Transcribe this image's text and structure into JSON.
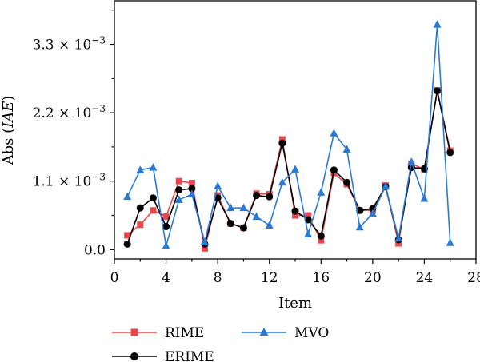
{
  "chart_data": {
    "type": "line",
    "xlabel": "Item",
    "ylabel": "Abs (IAE)",
    "ylabel_parts": {
      "prefix": "Abs (",
      "italic": "IAE",
      "suffix": ")"
    },
    "xlim": [
      0,
      28
    ],
    "ylim": [
      -0.00015,
      0.004
    ],
    "xticks": [
      0,
      4,
      8,
      12,
      16,
      20,
      24,
      28
    ],
    "yticks": [
      {
        "value": 0.0,
        "mantissa": "0.0",
        "exponent": ""
      },
      {
        "value": 0.0011,
        "mantissa": "1.1 × 10",
        "exponent": "−3"
      },
      {
        "value": 0.0022,
        "mantissa": "2.2 × 10",
        "exponent": "−3"
      },
      {
        "value": 0.0033,
        "mantissa": "3.3 × 10",
        "exponent": "−3"
      }
    ],
    "grid": false,
    "legend_position": "bottom",
    "x": [
      1,
      2,
      3,
      4,
      5,
      6,
      7,
      8,
      9,
      10,
      11,
      12,
      13,
      14,
      15,
      16,
      17,
      18,
      19,
      20,
      21,
      22,
      23,
      24,
      25,
      26
    ],
    "series": [
      {
        "name": "RIME",
        "color": "#e8474b",
        "marker": "square",
        "values": [
          0.00023,
          0.0004,
          0.00063,
          0.00053,
          0.0011,
          0.00107,
          2e-05,
          0.00087,
          0.00042,
          0.00035,
          0.0009,
          0.00089,
          0.00177,
          0.00055,
          0.00055,
          0.00015,
          0.00123,
          0.00105,
          0.00063,
          0.00063,
          0.00103,
          0.0001,
          0.00138,
          0.00129,
          0.00256,
          0.00159
        ]
      },
      {
        "name": "ERIME",
        "color": "#000000",
        "marker": "circle",
        "values": [
          9e-05,
          0.00067,
          0.00083,
          0.00037,
          0.00096,
          0.00098,
          9e-05,
          0.00083,
          0.00042,
          0.00035,
          0.00087,
          0.00085,
          0.00171,
          0.00062,
          0.00048,
          0.00022,
          0.00128,
          0.00108,
          0.00063,
          0.00066,
          0.00101,
          0.00016,
          0.00132,
          0.0013,
          0.00255,
          0.00156
        ]
      },
      {
        "name": "MVO",
        "color": "#2a7ad5",
        "marker": "triangle",
        "values": [
          0.00085,
          0.00128,
          0.00132,
          6e-05,
          0.0008,
          0.00089,
          0.00012,
          0.00102,
          0.00067,
          0.00067,
          0.00053,
          0.00039,
          0.00108,
          0.00129,
          0.00025,
          0.00092,
          0.00187,
          0.00161,
          0.00036,
          0.00058,
          0.00102,
          0.00018,
          0.00141,
          0.00082,
          0.00362,
          0.00011
        ]
      }
    ]
  }
}
